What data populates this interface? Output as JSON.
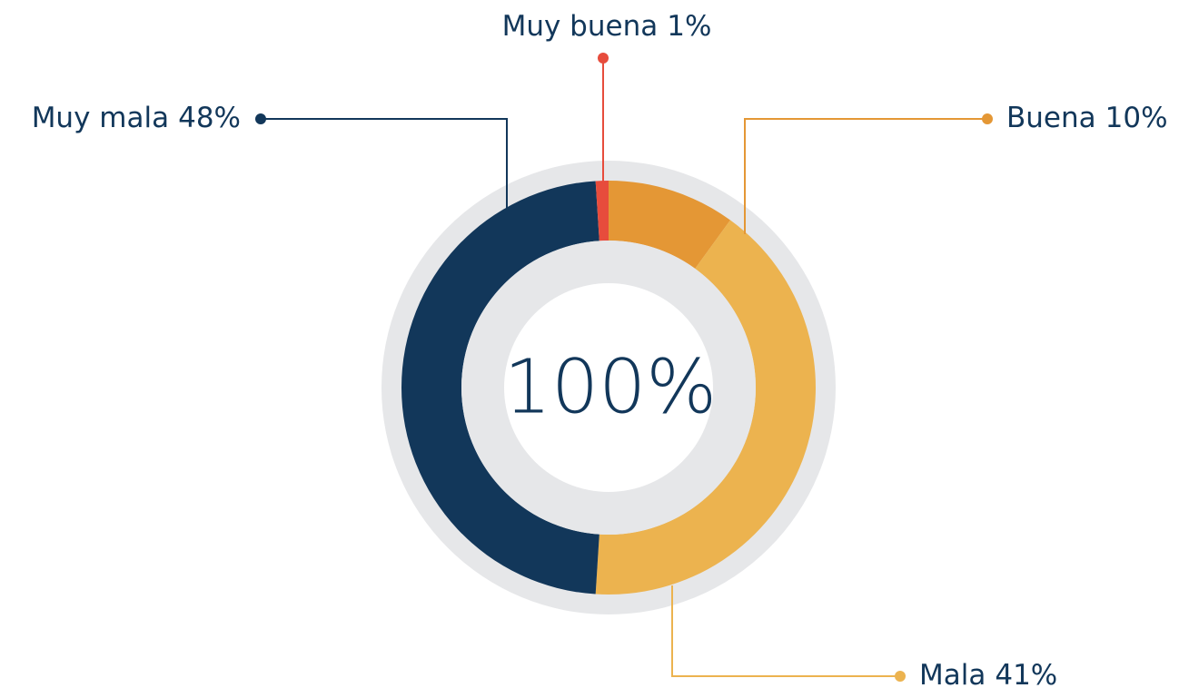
{
  "chart_data": {
    "type": "donut",
    "categories": [
      "Buena",
      "Mala",
      "Muy mala",
      "Muy buena"
    ],
    "values": [
      10,
      41,
      48,
      1
    ],
    "value_labels": [
      "10%",
      "41%",
      "48%",
      "1%"
    ],
    "colors": [
      "#e49735",
      "#ecb34f",
      "#12375a",
      "#e74c3c"
    ],
    "center_label": "100%"
  }
}
